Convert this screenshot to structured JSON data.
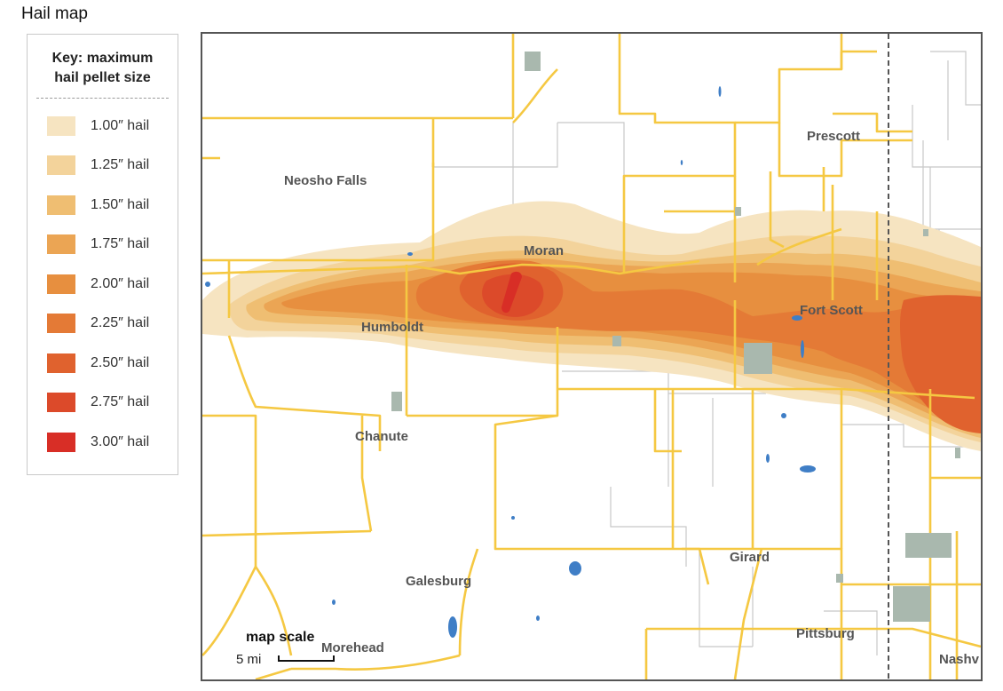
{
  "page": {
    "title": "Hail map"
  },
  "legend": {
    "title_line1": "Key: maximum",
    "title_line2": "hail pellet size",
    "items": [
      {
        "label": "1.00″ hail",
        "color": "#f6e4c1"
      },
      {
        "label": "1.25″ hail",
        "color": "#f3d39b"
      },
      {
        "label": "1.50″ hail",
        "color": "#efbe72"
      },
      {
        "label": "1.75″ hail",
        "color": "#eba554"
      },
      {
        "label": "2.00″ hail",
        "color": "#e78f3f"
      },
      {
        "label": "2.25″ hail",
        "color": "#e47a36"
      },
      {
        "label": "2.50″ hail",
        "color": "#e0622e"
      },
      {
        "label": "2.75″ hail",
        "color": "#dc4a2a"
      },
      {
        "label": "3.00″ hail",
        "color": "#d82e26"
      }
    ]
  },
  "map": {
    "colors": {
      "highway": "#f5c842",
      "county_line": "#c8c8c8",
      "water": "#3f7ec6",
      "urban": "#a9b8ae",
      "state_line": "#555555"
    },
    "places": [
      {
        "name": "Neosho Falls"
      },
      {
        "name": "Prescott"
      },
      {
        "name": "Moran"
      },
      {
        "name": "Humboldt"
      },
      {
        "name": "Fort Scott"
      },
      {
        "name": "Chanute"
      },
      {
        "name": "Galesburg"
      },
      {
        "name": "Girard"
      },
      {
        "name": "Morehead"
      },
      {
        "name": "Pittsburg"
      },
      {
        "name": "Nashv"
      }
    ],
    "scale": {
      "title": "map scale",
      "label": "5 mi"
    }
  }
}
